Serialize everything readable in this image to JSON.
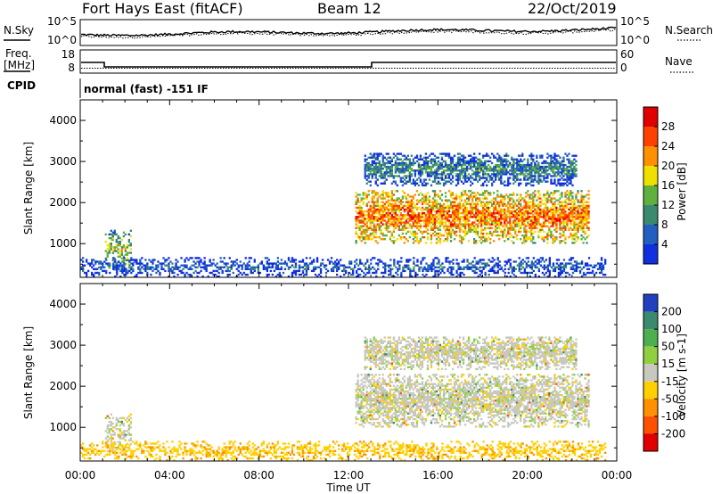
{
  "header": {
    "station": "Fort Hays East (fitACF)",
    "beam": "Beam 12",
    "date": "22/Oct/2019"
  },
  "sky_panel": {
    "left_label": "N.Sky",
    "right_label": "N.Search",
    "left_ticks": [
      "10^5",
      "10^0"
    ],
    "right_ticks": [
      "10^5",
      "10^0"
    ]
  },
  "freq_panel": {
    "left_label_1": "Freq.",
    "left_label_2": "[MHz]",
    "right_label": "Nave",
    "left_ticks": [
      "18",
      "8"
    ],
    "right_ticks": [
      "60",
      "0"
    ]
  },
  "cpid_panel": {
    "label": "CPID",
    "mode_text": "normal (fast) -151 IF"
  },
  "axes": {
    "ylabel": "Slant Range [km]",
    "xlabel": "Time UT",
    "x_ticks": [
      "00:00",
      "04:00",
      "08:00",
      "12:00",
      "16:00",
      "20:00",
      "00:00"
    ],
    "y_ticks": [
      "1000",
      "2000",
      "3000",
      "4000"
    ]
  },
  "chart_data": [
    {
      "type": "heatmap",
      "name": "power",
      "ylabel": "Slant Range [km]",
      "xlabel": "Time UT",
      "xlim_hours": [
        0,
        24
      ],
      "ylim_km": [
        180,
        4500
      ],
      "colorbar": {
        "label": "Power [dB]",
        "ticks": [
          "4",
          "8",
          "12",
          "16",
          "20",
          "24",
          "28"
        ],
        "min": 0,
        "max": 32,
        "colors": [
          "#1030e0",
          "#2060c0",
          "#3a8a70",
          "#60b040",
          "#f0e000",
          "#ff9000",
          "#ff4000",
          "#e00000"
        ]
      },
      "regions": [
        {
          "t0": 1.1,
          "t1": 2.3,
          "r0": 350,
          "r1": 1300,
          "level": 16
        },
        {
          "t0": 12.3,
          "t1": 22.7,
          "r0": 1000,
          "r1": 2300,
          "level": 24
        },
        {
          "t0": 12.7,
          "t1": 22.2,
          "r0": 2400,
          "r1": 3200,
          "level": 10
        },
        {
          "t0": 0,
          "t1": 23.5,
          "r0": 180,
          "r1": 650,
          "level": 6
        }
      ]
    },
    {
      "type": "heatmap",
      "name": "velocity",
      "ylabel": "Slant Range [km]",
      "xlabel": "Time UT",
      "xlim_hours": [
        0,
        24
      ],
      "ylim_km": [
        180,
        4500
      ],
      "colorbar": {
        "label": "Velocity [m s-1]",
        "ticks": [
          "200",
          "100",
          "50",
          "15",
          "-15",
          "-50",
          "-100",
          "-200"
        ],
        "colors": [
          "#2040c0",
          "#3a8a70",
          "#4caf50",
          "#90d040",
          "#c8c8c0",
          "#ffd000",
          "#ff9000",
          "#ff5000",
          "#e00000"
        ]
      },
      "regions": [
        {
          "t0": 1.1,
          "t1": 2.3,
          "r0": 350,
          "r1": 1300,
          "level": 0
        },
        {
          "t0": 12.3,
          "t1": 22.7,
          "r0": 1000,
          "r1": 2300,
          "level": 0
        },
        {
          "t0": 12.7,
          "t1": 22.2,
          "r0": 2400,
          "r1": 3200,
          "level": 0
        },
        {
          "t0": 0,
          "t1": 23.5,
          "r0": 180,
          "r1": 650,
          "level": -40
        }
      ]
    }
  ]
}
